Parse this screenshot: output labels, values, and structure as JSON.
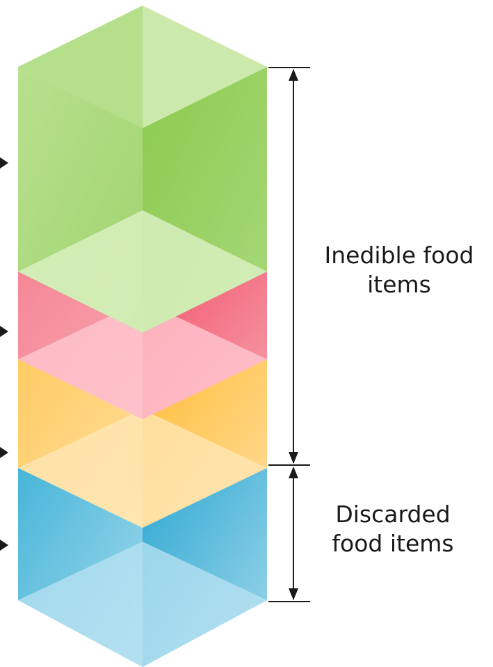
{
  "diagram": {
    "layers": [
      {
        "name": "green",
        "colors": {
          "left": "#a9d97e",
          "right": "#8fcc52",
          "top": "#bfe49a",
          "light": "#dcf1c4"
        }
      },
      {
        "name": "red",
        "colors": {
          "left": "#f06a7c",
          "right": "#f2526a",
          "top": "#f7a3ae",
          "light": "#fbc6cd"
        }
      },
      {
        "name": "orange",
        "colors": {
          "left": "#ffc85a",
          "right": "#ffbe3d",
          "top": "#ffd98a",
          "light": "#ffe8b8"
        }
      },
      {
        "name": "blue",
        "colors": {
          "left": "#4bb8da",
          "right": "#3aaed6",
          "top": "#88d1e8",
          "light": "#b6e2f1"
        }
      }
    ],
    "labels": {
      "inedible": {
        "line1": "Inedible food",
        "line2": "items"
      },
      "discarded": {
        "line1": "Discarded",
        "line2": "food items"
      }
    },
    "line_color": "#1a1a1a"
  }
}
